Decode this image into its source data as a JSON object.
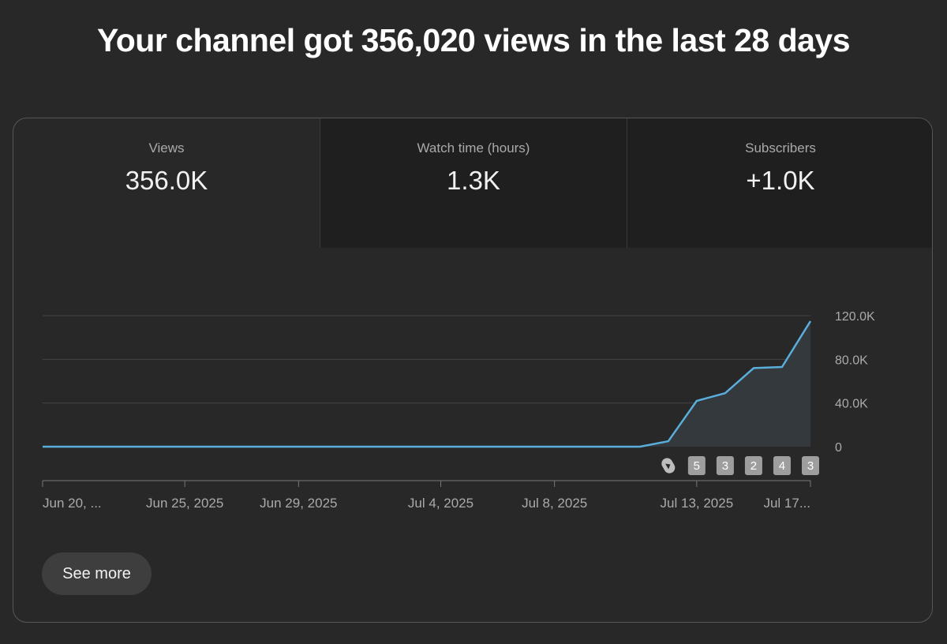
{
  "headline": "Your channel got 356,020 views in the last 28 days",
  "tabs": [
    {
      "label": "Views",
      "value": "356.0K"
    },
    {
      "label": "Watch time (hours)",
      "value": "1.3K"
    },
    {
      "label": "Subscribers",
      "value": "+1.0K"
    }
  ],
  "colors": {
    "line": "#5aaedc",
    "area": "#33393d",
    "grid": "#444444",
    "marker_bg": "#9e9e9e"
  },
  "see_more_label": "See more",
  "chart_data": {
    "type": "area",
    "x": [
      "Jun 20, 2025",
      "Jun 21, 2025",
      "Jun 22, 2025",
      "Jun 23, 2025",
      "Jun 24, 2025",
      "Jun 25, 2025",
      "Jun 26, 2025",
      "Jun 27, 2025",
      "Jun 28, 2025",
      "Jun 29, 2025",
      "Jun 30, 2025",
      "Jul 1, 2025",
      "Jul 2, 2025",
      "Jul 3, 2025",
      "Jul 4, 2025",
      "Jul 5, 2025",
      "Jul 6, 2025",
      "Jul 7, 2025",
      "Jul 8, 2025",
      "Jul 9, 2025",
      "Jul 10, 2025",
      "Jul 11, 2025",
      "Jul 12, 2025",
      "Jul 13, 2025",
      "Jul 14, 2025",
      "Jul 15, 2025",
      "Jul 16, 2025",
      "Jul 17, 2025"
    ],
    "series": [
      {
        "values": [
          0,
          0,
          0,
          0,
          0,
          0,
          0,
          0,
          0,
          0,
          0,
          0,
          0,
          0,
          0,
          0,
          0,
          0,
          0,
          0,
          0,
          0,
          5000,
          42000,
          49000,
          72000,
          73000,
          115000
        ]
      }
    ],
    "ylim": [
      0,
      120000
    ],
    "yticks": [
      0,
      40000,
      80000,
      120000
    ],
    "ytick_labels": [
      "0",
      "40.0K",
      "80.0K",
      "120.0K"
    ],
    "y_axis_position": "right",
    "xtick_labels": [
      {
        "label": "Jun 20, ...",
        "x": "Jun 20, 2025"
      },
      {
        "label": "Jun 25, 2025",
        "x": "Jun 25, 2025"
      },
      {
        "label": "Jun 29, 2025",
        "x": "Jun 29, 2025"
      },
      {
        "label": "Jul 4, 2025",
        "x": "Jul 4, 2025"
      },
      {
        "label": "Jul 8, 2025",
        "x": "Jul 8, 2025"
      },
      {
        "label": "Jul 13, 2025",
        "x": "Jul 13, 2025"
      },
      {
        "label": "Jul 17...",
        "x": "Jul 17, 2025"
      }
    ],
    "grid": true,
    "upload_markers": [
      {
        "x": "Jul 12, 2025",
        "type": "shorts-icon"
      },
      {
        "x": "Jul 13, 2025",
        "label": "5"
      },
      {
        "x": "Jul 14, 2025",
        "label": "3"
      },
      {
        "x": "Jul 15, 2025",
        "label": "2"
      },
      {
        "x": "Jul 16, 2025",
        "label": "4"
      },
      {
        "x": "Jul 17, 2025",
        "label": "3"
      }
    ]
  }
}
